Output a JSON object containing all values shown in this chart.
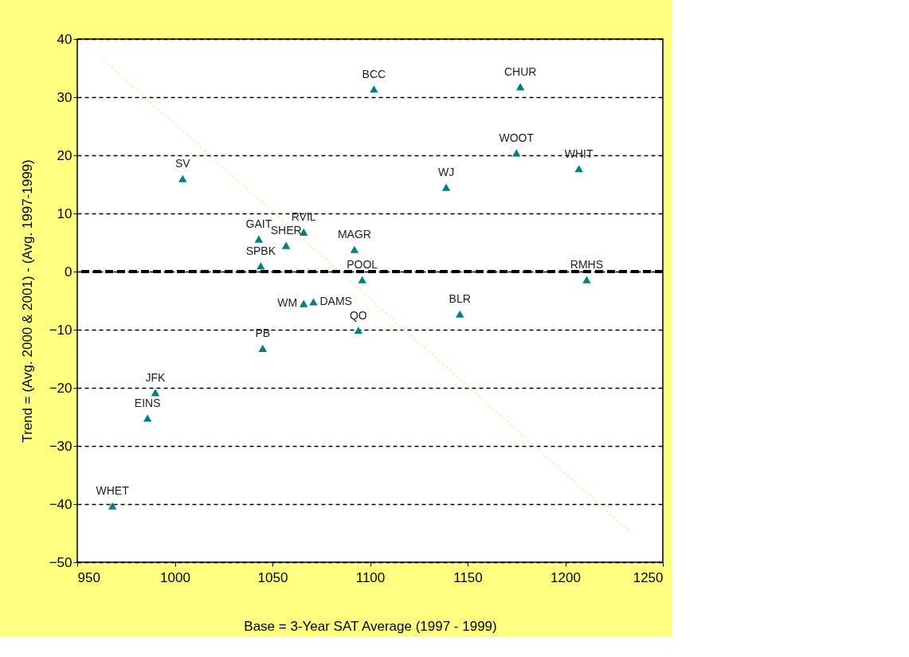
{
  "chart_data": {
    "type": "scatter",
    "xlabel": "Base = 3-Year  SAT Average (1997 - 1999)",
    "ylabel": "Trend = (Avg. 2000 & 2001) - (Avg. 1997-1999)",
    "xlim": [
      950,
      1250
    ],
    "xticks": [
      950,
      {
        "value": 1000,
        "label": "1000"
      },
      {
        "value": 1050,
        "label": "1050"
      },
      {
        "value": 1100,
        "label": "1100"
      },
      {
        "value": 1150,
        "label": "1150"
      },
      {
        "value": 1200,
        "label": "1200"
      },
      {
        "value": 1250,
        "label": "1250"
      }
    ],
    "ylim": [
      -50,
      40
    ],
    "yticks": [
      -50,
      -40,
      -30,
      -20,
      -10,
      0,
      10,
      20,
      30,
      40
    ],
    "grid": "y",
    "marker": "triangle",
    "series": [
      {
        "color": "#008080",
        "x": [
          1004,
          1102,
          1177,
          1175,
          1207,
          1139,
          1043,
          1066,
          1057,
          1092,
          1044,
          1096,
          1211,
          1066,
          1071,
          1146,
          1094,
          1045,
          990,
          986,
          968
        ],
        "values": [
          16.0,
          31.4,
          31.8,
          20.4,
          17.7,
          14.5,
          5.6,
          6.8,
          4.5,
          3.8,
          1.0,
          -1.4,
          -1.4,
          -5.5,
          -5.2,
          -7.3,
          -10.1,
          -13.2,
          -20.8,
          -25.2,
          -40.3
        ]
      },
      {
        "type": "line",
        "color": "#f4f0c0",
        "line_style": "dotted",
        "marker": "none",
        "x": [
          962,
          1234
        ],
        "values": [
          36.8,
          -45
        ]
      }
    ],
    "ref_lines": [
      {
        "axis": "y",
        "value": 0,
        "color": "#000000",
        "line_style": "dashed"
      }
    ],
    "annotations": [
      {
        "text": "SV",
        "x": 1004,
        "y": 16.0
      },
      {
        "text": "BCC",
        "x": 1102,
        "y": 31.4
      },
      {
        "text": "CHUR",
        "x": 1177,
        "y": 31.8
      },
      {
        "text": "WOOT",
        "x": 1175,
        "y": 20.4
      },
      {
        "text": "WHIT",
        "x": 1207,
        "y": 17.7
      },
      {
        "text": "WJ",
        "x": 1139,
        "y": 14.5
      },
      {
        "text": "GAIT",
        "x": 1043,
        "y": 5.6
      },
      {
        "text": "RVIL",
        "x": 1066,
        "y": 6.8
      },
      {
        "text": "SHER",
        "x": 1057,
        "y": 4.5
      },
      {
        "text": "MAGR",
        "x": 1092,
        "y": 3.8
      },
      {
        "text": "SPBK",
        "x": 1044,
        "y": 1.0
      },
      {
        "text": "POOL",
        "x": 1096,
        "y": -1.4
      },
      {
        "text": "RMHS",
        "x": 1211,
        "y": -1.4
      },
      {
        "text": "WM",
        "x": 1066,
        "y": -5.5
      },
      {
        "text": "DAMS",
        "x": 1071,
        "y": -5.2
      },
      {
        "text": "BLR",
        "x": 1146,
        "y": -7.3
      },
      {
        "text": "QO",
        "x": 1094,
        "y": -10.1
      },
      {
        "text": "PB",
        "x": 1045,
        "y": -13.2
      },
      {
        "text": "JFK",
        "x": 990,
        "y": -20.8
      },
      {
        "text": "EINS",
        "x": 986,
        "y": -25.2
      },
      {
        "text": "WHET",
        "x": 968,
        "y": -40.3
      }
    ]
  }
}
